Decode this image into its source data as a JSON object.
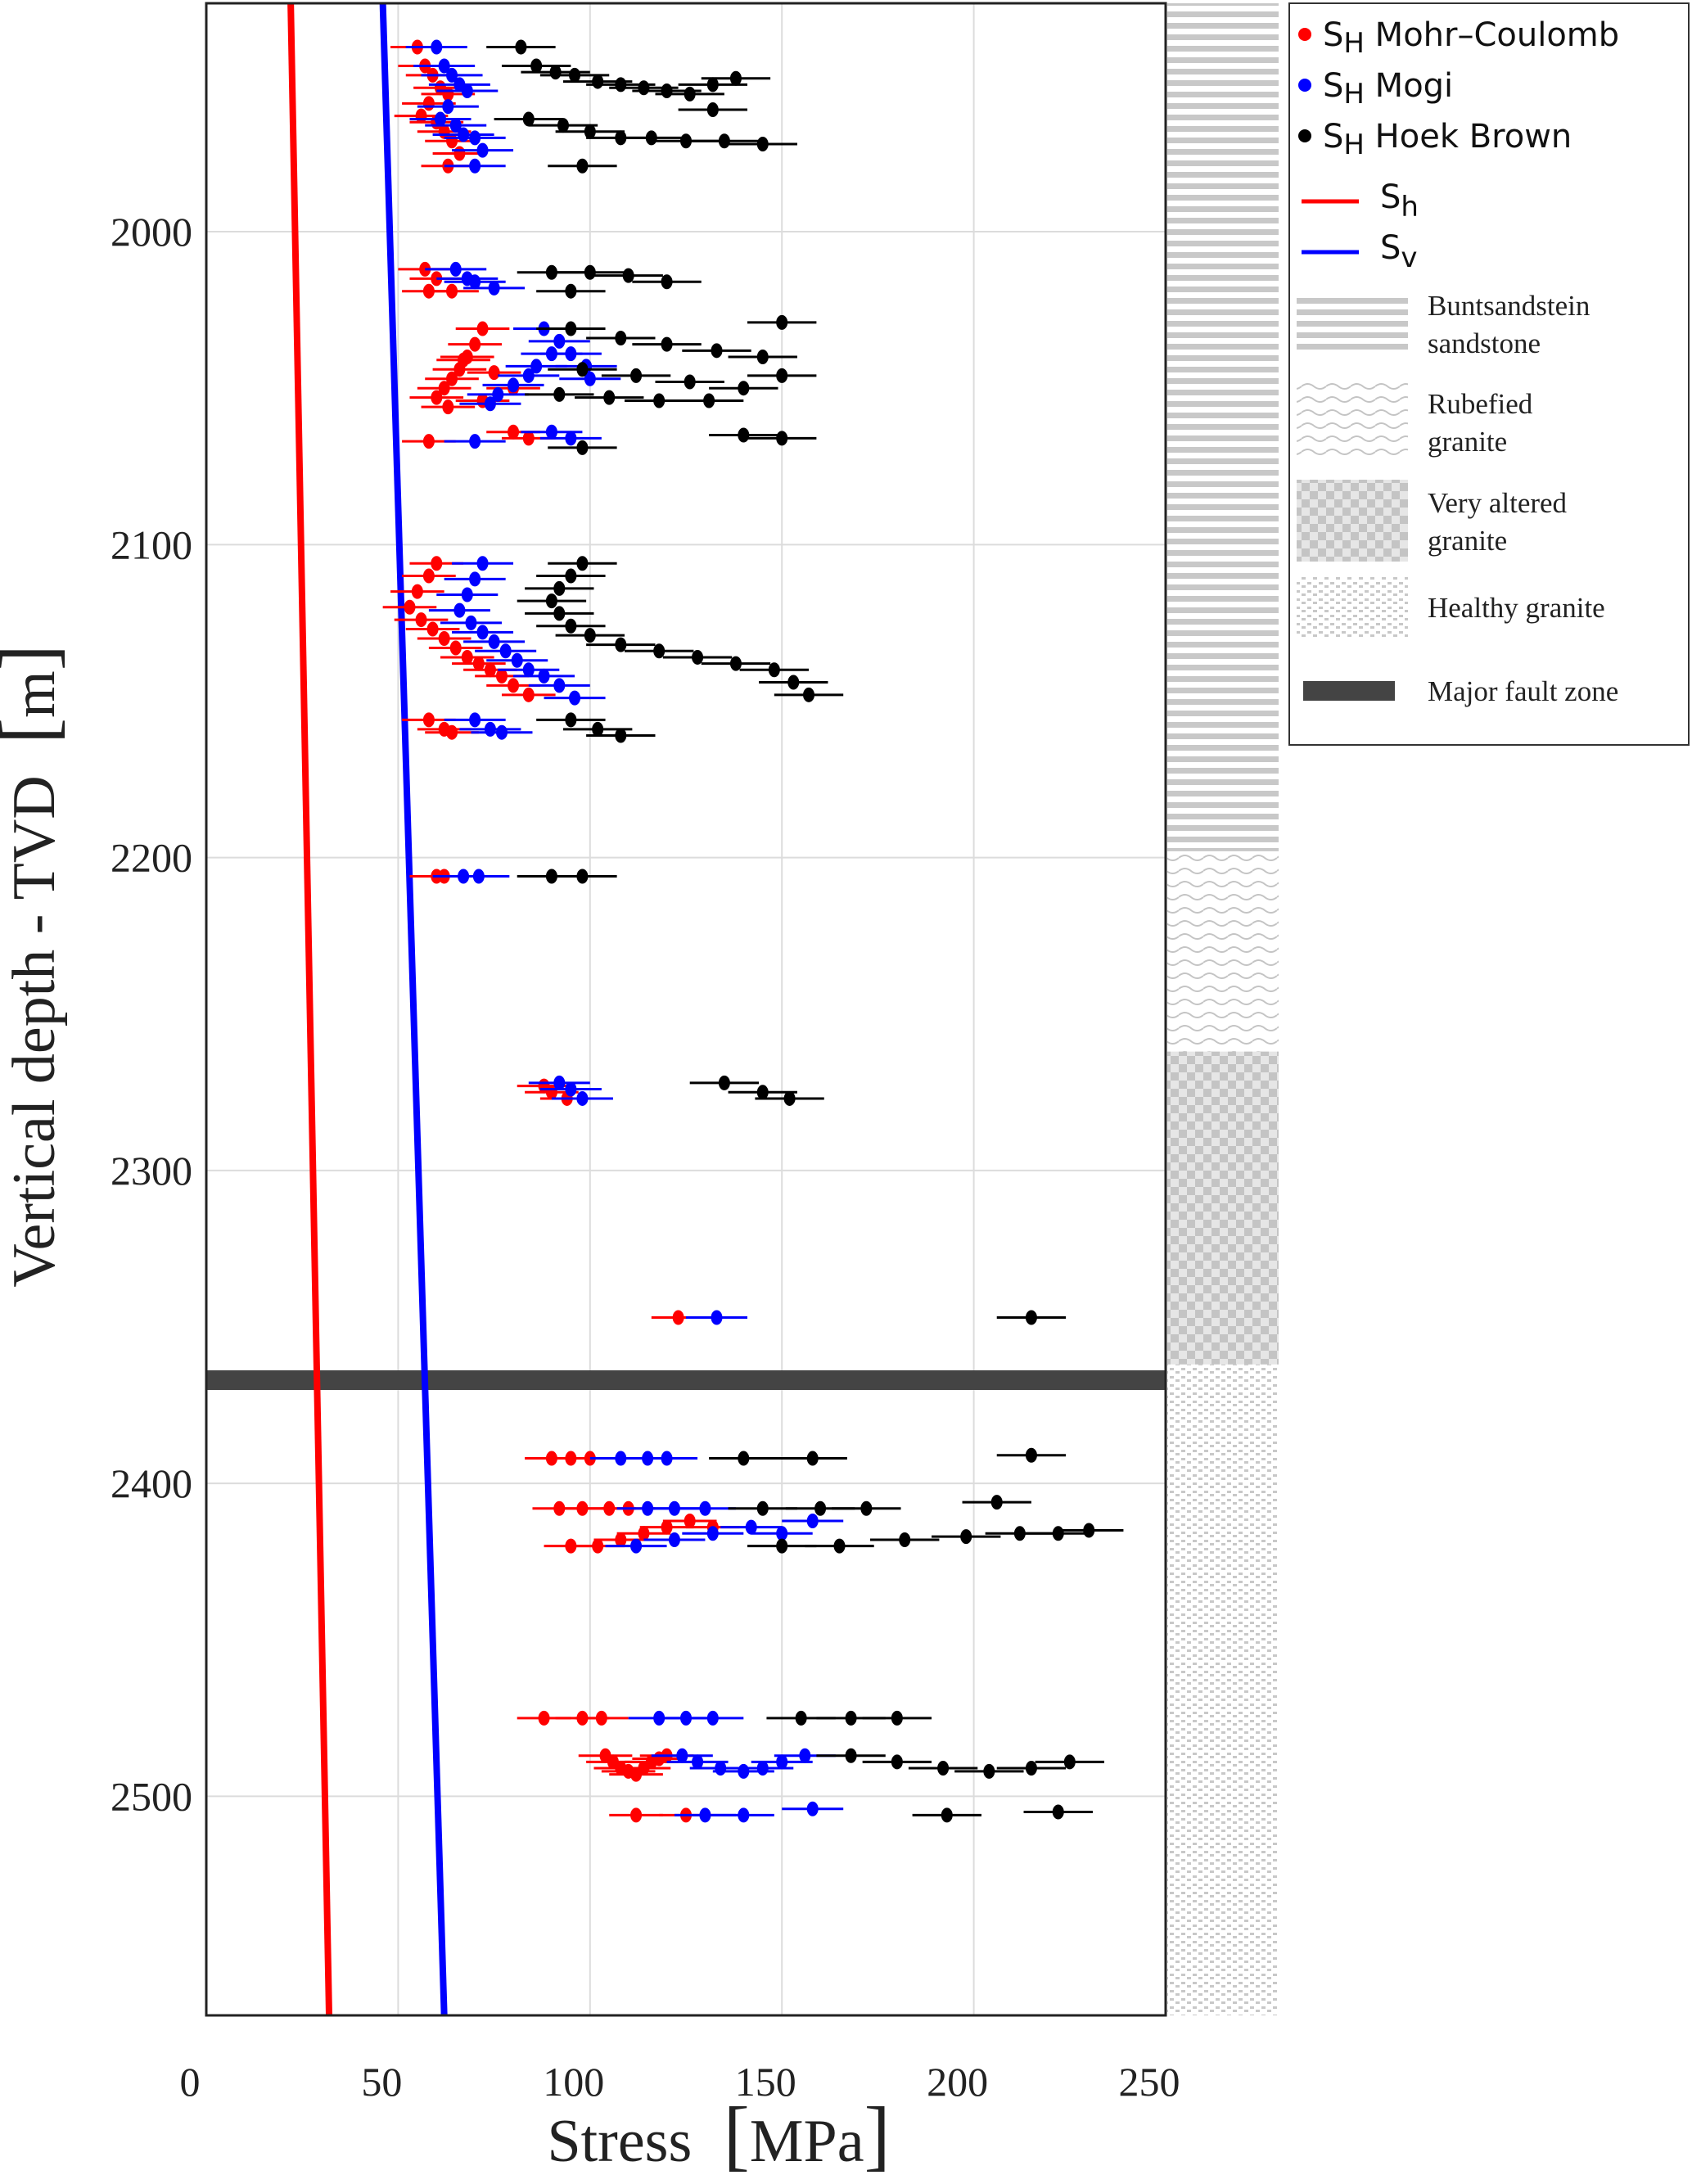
{
  "chart_data": {
    "type": "scatter",
    "xlabel": "Stress",
    "xlabel_unit": "MPa",
    "ylabel": "Vertical depth - TVD",
    "ylabel_unit": "m",
    "xlim": [
      0,
      250
    ],
    "ylim": [
      2570,
      1927
    ],
    "x_ticks": [
      0,
      50,
      100,
      150,
      200,
      250
    ],
    "y_ticks": [
      2000,
      2100,
      2200,
      2300,
      2400,
      2500
    ],
    "grid": true,
    "legend_placement": "right",
    "lines": [
      {
        "key": "sh",
        "label": "Sh",
        "label_base": "S",
        "label_sub": "h",
        "color": "#ff0000",
        "points": [
          [
            22,
            1927
          ],
          [
            32,
            2570
          ]
        ]
      },
      {
        "key": "sv",
        "label": "Sv",
        "label_base": "S",
        "label_sub": "v",
        "color": "#0000ff",
        "points": [
          [
            46,
            1927
          ],
          [
            62,
            2570
          ]
        ]
      }
    ],
    "fault_zone": {
      "label": "Major fault zone",
      "depth": 2367,
      "color": "#444444"
    },
    "lithology": [
      {
        "name": "Buntsandstein sandstone",
        "label_lines": [
          "Buntsandstein",
          "sandstone"
        ],
        "top": 1927,
        "bottom": 2198,
        "pattern": "hlines"
      },
      {
        "name": "Rubefied granite",
        "label_lines": [
          "Rubefied",
          "granite"
        ],
        "top": 2198,
        "bottom": 2262,
        "pattern": "waves"
      },
      {
        "name": "Very altered granite",
        "label_lines": [
          "Very altered",
          "granite"
        ],
        "top": 2262,
        "bottom": 2362,
        "pattern": "checker"
      },
      {
        "name": "Healthy granite",
        "label_lines": [
          "Healthy granite"
        ],
        "top": 2362,
        "bottom": 2570,
        "pattern": "dots"
      }
    ],
    "series": [
      {
        "name": "SH Mohr–Coulomb",
        "label_base": "S",
        "label_sub": "H",
        "label_rest": " Mohr–Coulomb",
        "color": "#ff0000",
        "err": 7,
        "points": [
          [
            55,
            1941
          ],
          [
            57,
            1947
          ],
          [
            59,
            1950
          ],
          [
            61,
            1954
          ],
          [
            63,
            1956
          ],
          [
            58,
            1959
          ],
          [
            56,
            1963
          ],
          [
            60,
            1965
          ],
          [
            62,
            1968
          ],
          [
            64,
            1971
          ],
          [
            66,
            1975
          ],
          [
            63,
            1979
          ],
          [
            57,
            2012
          ],
          [
            60,
            2015
          ],
          [
            58,
            2019
          ],
          [
            64,
            2019
          ],
          [
            72,
            2031
          ],
          [
            70,
            2036
          ],
          [
            68,
            2040
          ],
          [
            66,
            2044
          ],
          [
            64,
            2047
          ],
          [
            62,
            2050
          ],
          [
            60,
            2053
          ],
          [
            63,
            2056
          ],
          [
            67,
            2041
          ],
          [
            75,
            2045
          ],
          [
            80,
            2050
          ],
          [
            72,
            2054
          ],
          [
            58,
            2067
          ],
          [
            80,
            2064
          ],
          [
            84,
            2066
          ],
          [
            60,
            2106
          ],
          [
            58,
            2110
          ],
          [
            55,
            2115
          ],
          [
            53,
            2120
          ],
          [
            56,
            2124
          ],
          [
            59,
            2127
          ],
          [
            62,
            2130
          ],
          [
            65,
            2133
          ],
          [
            68,
            2136
          ],
          [
            71,
            2138
          ],
          [
            74,
            2140
          ],
          [
            77,
            2142
          ],
          [
            80,
            2145
          ],
          [
            84,
            2148
          ],
          [
            58,
            2156
          ],
          [
            62,
            2159
          ],
          [
            64,
            2160
          ],
          [
            60,
            2206
          ],
          [
            62,
            2206
          ],
          [
            88,
            2273
          ],
          [
            90,
            2275
          ],
          [
            94,
            2277
          ],
          [
            123,
            2347
          ],
          [
            90,
            2392
          ],
          [
            95,
            2392
          ],
          [
            100,
            2392
          ],
          [
            92,
            2408
          ],
          [
            98,
            2408
          ],
          [
            105,
            2408
          ],
          [
            110,
            2408
          ],
          [
            95,
            2420
          ],
          [
            102,
            2420
          ],
          [
            108,
            2418
          ],
          [
            114,
            2416
          ],
          [
            120,
            2414
          ],
          [
            126,
            2412
          ],
          [
            132,
            2414
          ],
          [
            88,
            2475
          ],
          [
            98,
            2475
          ],
          [
            103,
            2475
          ],
          [
            104,
            2487
          ],
          [
            106,
            2489
          ],
          [
            108,
            2491
          ],
          [
            110,
            2492
          ],
          [
            112,
            2493
          ],
          [
            114,
            2491
          ],
          [
            116,
            2489
          ],
          [
            118,
            2488
          ],
          [
            120,
            2487
          ],
          [
            112,
            2506
          ],
          [
            125,
            2506
          ]
        ]
      },
      {
        "name": "SH Mogi",
        "label_base": "S",
        "label_sub": "H",
        "label_rest": " Mogi",
        "color": "#0000ff",
        "err": 8,
        "points": [
          [
            60,
            1941
          ],
          [
            62,
            1947
          ],
          [
            64,
            1950
          ],
          [
            66,
            1953
          ],
          [
            68,
            1955
          ],
          [
            63,
            1960
          ],
          [
            61,
            1964
          ],
          [
            65,
            1966
          ],
          [
            67,
            1969
          ],
          [
            70,
            1970
          ],
          [
            72,
            1974
          ],
          [
            70,
            1979
          ],
          [
            65,
            2012
          ],
          [
            68,
            2015
          ],
          [
            70,
            2016
          ],
          [
            75,
            2018
          ],
          [
            88,
            2031
          ],
          [
            92,
            2035
          ],
          [
            90,
            2039
          ],
          [
            86,
            2043
          ],
          [
            84,
            2046
          ],
          [
            80,
            2049
          ],
          [
            76,
            2052
          ],
          [
            74,
            2055
          ],
          [
            95,
            2039
          ],
          [
            99,
            2043
          ],
          [
            100,
            2047
          ],
          [
            70,
            2067
          ],
          [
            90,
            2064
          ],
          [
            95,
            2066
          ],
          [
            72,
            2106
          ],
          [
            70,
            2111
          ],
          [
            68,
            2116
          ],
          [
            66,
            2121
          ],
          [
            69,
            2125
          ],
          [
            72,
            2128
          ],
          [
            75,
            2131
          ],
          [
            78,
            2134
          ],
          [
            81,
            2137
          ],
          [
            84,
            2140
          ],
          [
            88,
            2142
          ],
          [
            92,
            2145
          ],
          [
            96,
            2149
          ],
          [
            70,
            2156
          ],
          [
            74,
            2159
          ],
          [
            77,
            2160
          ],
          [
            67,
            2206
          ],
          [
            71,
            2206
          ],
          [
            92,
            2272
          ],
          [
            95,
            2274
          ],
          [
            98,
            2277
          ],
          [
            133,
            2347
          ],
          [
            108,
            2392
          ],
          [
            115,
            2392
          ],
          [
            120,
            2392
          ],
          [
            115,
            2408
          ],
          [
            122,
            2408
          ],
          [
            130,
            2408
          ],
          [
            112,
            2420
          ],
          [
            122,
            2418
          ],
          [
            132,
            2416
          ],
          [
            142,
            2414
          ],
          [
            150,
            2416
          ],
          [
            158,
            2412
          ],
          [
            118,
            2475
          ],
          [
            125,
            2475
          ],
          [
            132,
            2475
          ],
          [
            124,
            2487
          ],
          [
            128,
            2489
          ],
          [
            134,
            2491
          ],
          [
            140,
            2492
          ],
          [
            145,
            2491
          ],
          [
            150,
            2489
          ],
          [
            156,
            2487
          ],
          [
            130,
            2506
          ],
          [
            140,
            2506
          ],
          [
            158,
            2504
          ]
        ]
      },
      {
        "name": "SH Hoek Brown",
        "label_base": "S",
        "label_sub": "H",
        "label_rest": " Hoek Brown",
        "color": "#000000",
        "err": 9,
        "points": [
          [
            82,
            1941
          ],
          [
            86,
            1947
          ],
          [
            91,
            1949
          ],
          [
            96,
            1950
          ],
          [
            102,
            1952
          ],
          [
            108,
            1953
          ],
          [
            114,
            1954
          ],
          [
            120,
            1955
          ],
          [
            126,
            1956
          ],
          [
            132,
            1953
          ],
          [
            138,
            1951
          ],
          [
            132,
            1961
          ],
          [
            84,
            1964
          ],
          [
            93,
            1966
          ],
          [
            100,
            1968
          ],
          [
            108,
            1970
          ],
          [
            116,
            1970
          ],
          [
            125,
            1971
          ],
          [
            135,
            1971
          ],
          [
            145,
            1972
          ],
          [
            98,
            1979
          ],
          [
            90,
            2013
          ],
          [
            100,
            2013
          ],
          [
            110,
            2014
          ],
          [
            120,
            2016
          ],
          [
            95,
            2019
          ],
          [
            95,
            2031
          ],
          [
            108,
            2034
          ],
          [
            120,
            2036
          ],
          [
            133,
            2038
          ],
          [
            145,
            2040
          ],
          [
            150,
            2029
          ],
          [
            98,
            2044
          ],
          [
            112,
            2046
          ],
          [
            126,
            2048
          ],
          [
            140,
            2050
          ],
          [
            150,
            2046
          ],
          [
            92,
            2052
          ],
          [
            105,
            2053
          ],
          [
            118,
            2054
          ],
          [
            131,
            2054
          ],
          [
            140,
            2065
          ],
          [
            150,
            2066
          ],
          [
            98,
            2069
          ],
          [
            98,
            2106
          ],
          [
            95,
            2110
          ],
          [
            92,
            2114
          ],
          [
            90,
            2118
          ],
          [
            92,
            2122
          ],
          [
            95,
            2126
          ],
          [
            100,
            2129
          ],
          [
            108,
            2132
          ],
          [
            118,
            2134
          ],
          [
            128,
            2136
          ],
          [
            138,
            2138
          ],
          [
            148,
            2140
          ],
          [
            153,
            2144
          ],
          [
            157,
            2148
          ],
          [
            95,
            2156
          ],
          [
            102,
            2159
          ],
          [
            108,
            2161
          ],
          [
            90,
            2206
          ],
          [
            98,
            2206
          ],
          [
            135,
            2272
          ],
          [
            145,
            2275
          ],
          [
            152,
            2277
          ],
          [
            215,
            2347
          ],
          [
            140,
            2392
          ],
          [
            158,
            2392
          ],
          [
            215,
            2391
          ],
          [
            145,
            2408
          ],
          [
            160,
            2408
          ],
          [
            172,
            2408
          ],
          [
            206,
            2406
          ],
          [
            150,
            2420
          ],
          [
            165,
            2420
          ],
          [
            182,
            2418
          ],
          [
            198,
            2417
          ],
          [
            212,
            2416
          ],
          [
            222,
            2416
          ],
          [
            230,
            2415
          ],
          [
            155,
            2475
          ],
          [
            168,
            2475
          ],
          [
            180,
            2475
          ],
          [
            168,
            2487
          ],
          [
            180,
            2489
          ],
          [
            192,
            2491
          ],
          [
            204,
            2492
          ],
          [
            215,
            2491
          ],
          [
            225,
            2489
          ],
          [
            193,
            2506
          ],
          [
            222,
            2505
          ]
        ]
      }
    ]
  }
}
